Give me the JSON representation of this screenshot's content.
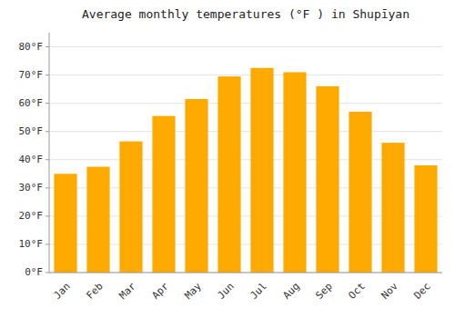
{
  "chart_data": {
    "type": "bar",
    "title": "Average monthly temperatures (°F ) in Shupīyan",
    "categories": [
      "Jan",
      "Feb",
      "Mar",
      "Apr",
      "May",
      "Jun",
      "Jul",
      "Aug",
      "Sep",
      "Oct",
      "Nov",
      "Dec"
    ],
    "values": [
      35,
      37.5,
      46.5,
      55.5,
      61.5,
      69.5,
      72.5,
      71,
      66,
      57,
      46,
      38
    ],
    "color": "#FFAA00",
    "ylim": [
      0,
      85
    ],
    "yticks": [
      {
        "value": 0,
        "label": "0°F"
      },
      {
        "value": 10,
        "label": "10°F"
      },
      {
        "value": 20,
        "label": "20°F"
      },
      {
        "value": 30,
        "label": "30°F"
      },
      {
        "value": 40,
        "label": "40°F"
      },
      {
        "value": 50,
        "label": "50°F"
      },
      {
        "value": 60,
        "label": "60°F"
      },
      {
        "value": 70,
        "label": "70°F"
      },
      {
        "value": 80,
        "label": "80°F"
      }
    ],
    "grid": true
  }
}
